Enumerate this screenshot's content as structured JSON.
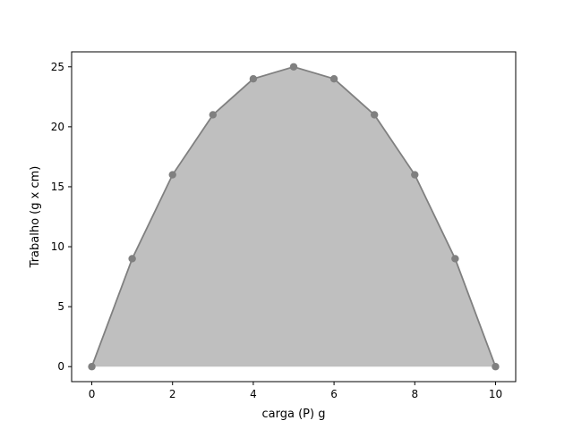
{
  "chart_data": {
    "type": "area",
    "title": "",
    "xlabel": "carga (P) g",
    "ylabel": "Trabalho (g x cm)",
    "x": [
      0,
      1,
      2,
      3,
      4,
      5,
      6,
      7,
      8,
      9,
      10
    ],
    "series": [
      {
        "values": [
          0,
          9,
          16,
          21,
          24,
          25,
          24,
          21,
          16,
          9,
          0
        ]
      }
    ],
    "xlim": [
      -0.5,
      10.5
    ],
    "ylim": [
      -1.25,
      26.25
    ],
    "xticks": [
      0,
      2,
      4,
      6,
      8,
      10
    ],
    "yticks": [
      0,
      5,
      10,
      15,
      20,
      25
    ],
    "grid": false,
    "colors": {
      "fill": "#bfbfbf",
      "line": "#808080",
      "marker": "#808080"
    }
  }
}
